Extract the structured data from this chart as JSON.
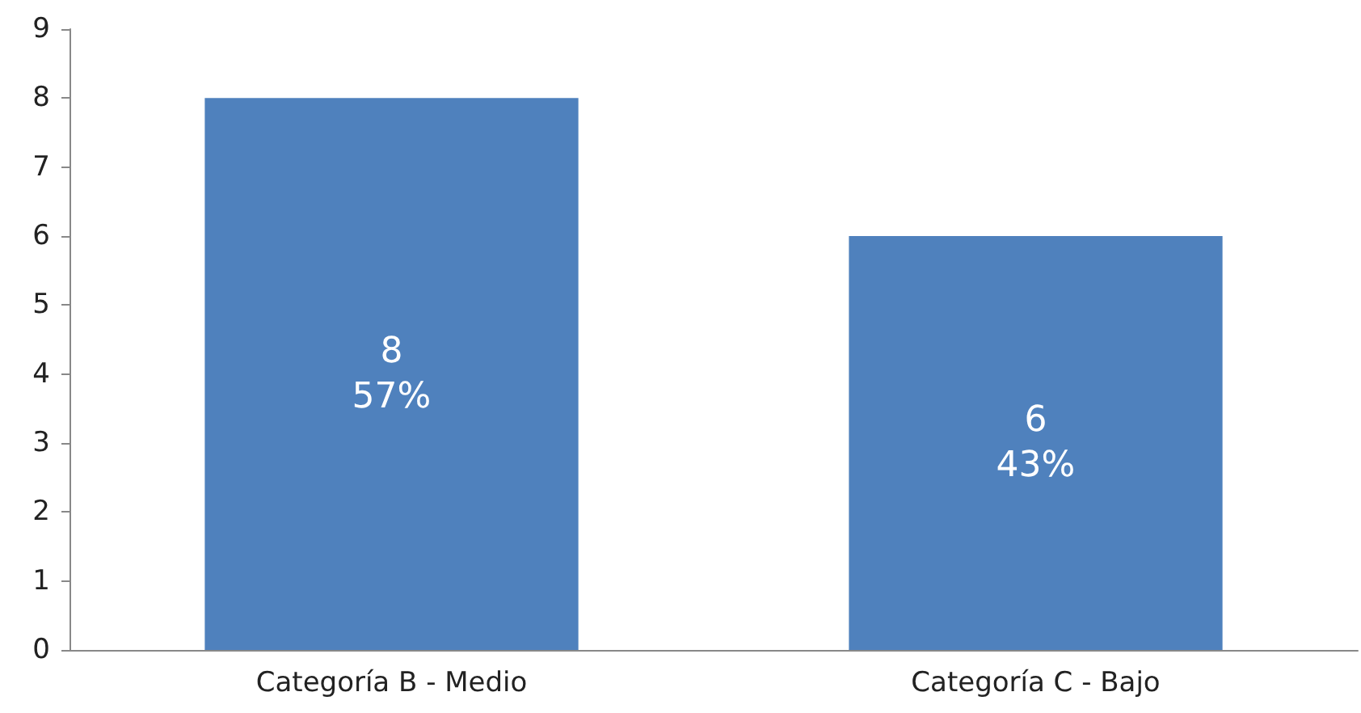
{
  "chart_data": {
    "type": "bar",
    "categories": [
      "Categoría B - Medio",
      "Categoría C - Bajo"
    ],
    "values": [
      8,
      6
    ],
    "value_labels": [
      "8\n57%",
      "6\n43%"
    ],
    "color": "#4f81bd",
    "ylim": [
      0,
      9
    ],
    "yticks": [
      0,
      1,
      2,
      3,
      4,
      5,
      6,
      7,
      8,
      9
    ],
    "grid": false
  }
}
